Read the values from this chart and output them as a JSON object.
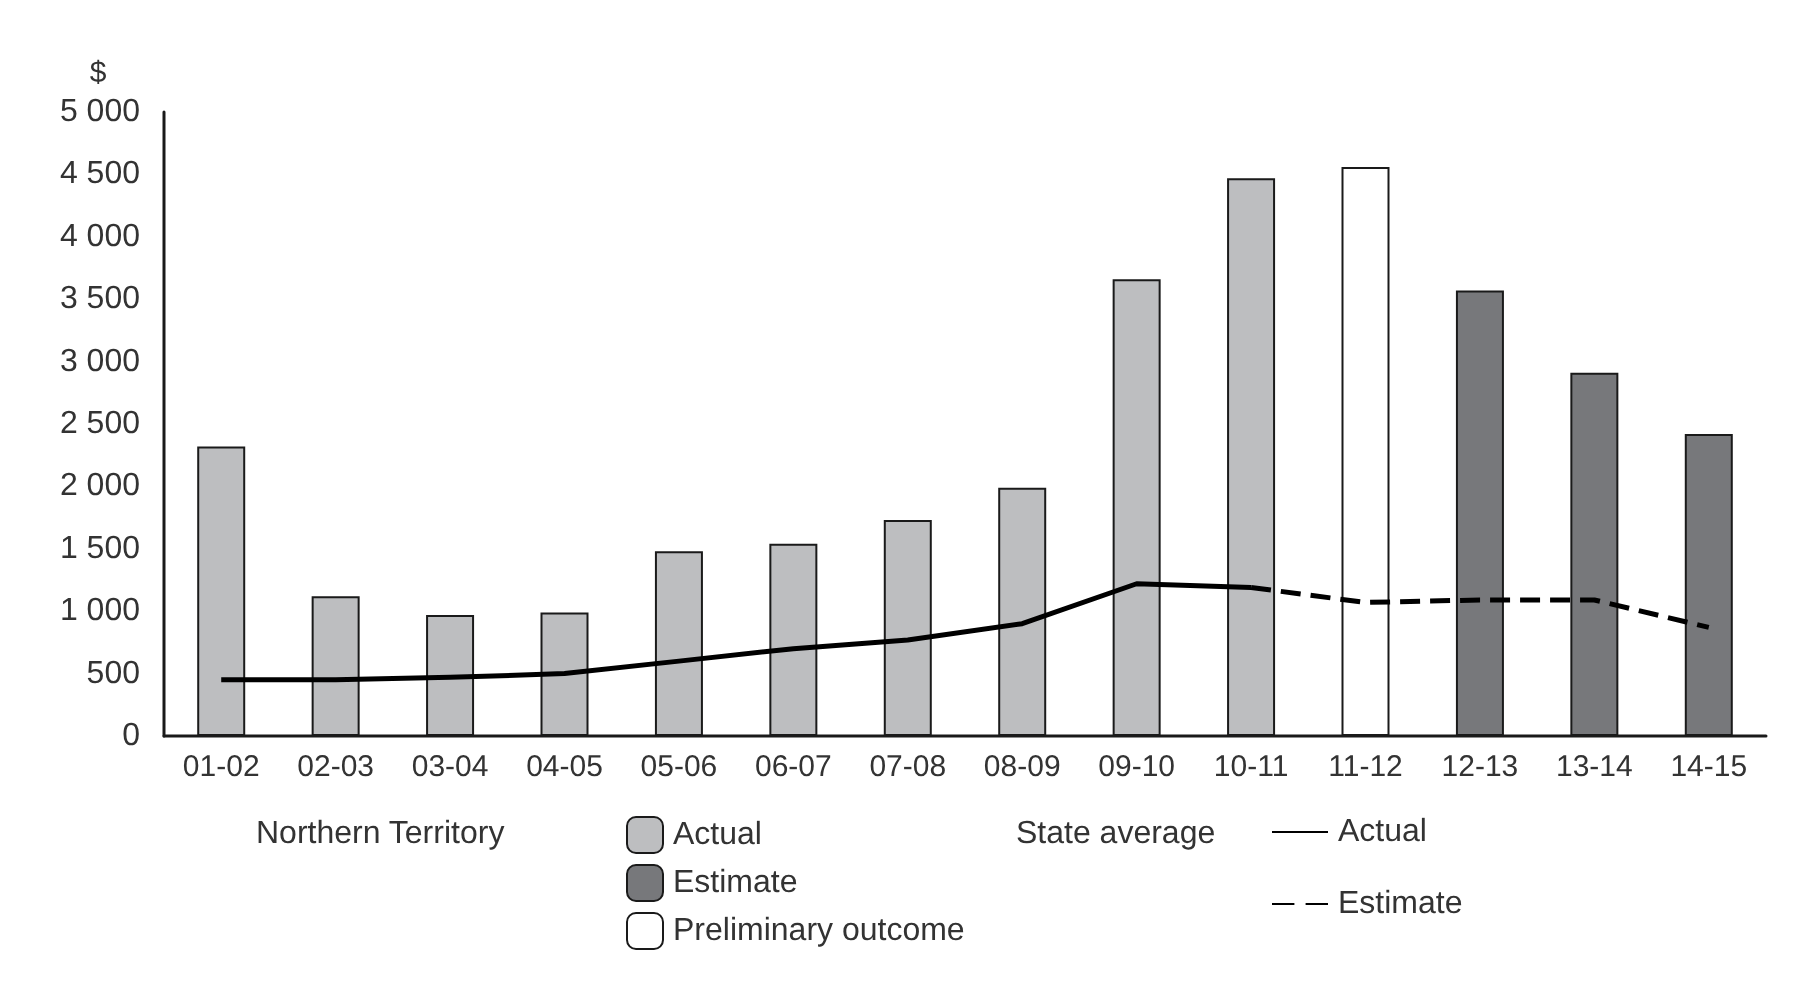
{
  "chart_data": {
    "type": "bar",
    "ylabel": "$",
    "categories": [
      "01-02",
      "02-03",
      "03-04",
      "04-05",
      "05-06",
      "06-07",
      "07-08",
      "08-09",
      "09-10",
      "10-11",
      "11-12",
      "12-13",
      "13-14",
      "14-15"
    ],
    "series": [
      {
        "name": "Actual",
        "color": "#bdbec0",
        "values": [
          2320,
          1120,
          970,
          990,
          1480,
          1540,
          1730,
          1990,
          3660,
          4470,
          null,
          null,
          null,
          null
        ]
      },
      {
        "name": "Estimate",
        "color": "#77787b",
        "values": [
          null,
          null,
          null,
          null,
          null,
          null,
          null,
          null,
          null,
          null,
          null,
          3570,
          2910,
          2420
        ]
      },
      {
        "name": "Preliminary outcome",
        "color": "#ffffff",
        "values": [
          null,
          null,
          null,
          null,
          null,
          null,
          null,
          null,
          null,
          null,
          4560,
          null,
          null,
          null
        ]
      },
      {
        "name": "Actual",
        "type": "line",
        "color": "#000000",
        "line_style": "solid",
        "values": [
          450,
          450,
          470,
          500,
          600,
          700,
          770,
          900,
          1220,
          1190,
          null,
          null,
          null,
          null
        ]
      },
      {
        "name": "Estimate",
        "type": "line",
        "color": "#000000",
        "line_style": "dashed",
        "values": [
          null,
          null,
          null,
          null,
          null,
          null,
          null,
          null,
          null,
          1190,
          1070,
          1090,
          1090,
          870
        ]
      }
    ],
    "annotations": [
      "Northern Territory",
      "State average"
    ],
    "ylim": [
      0,
      5000
    ],
    "yticks": [
      0,
      500,
      {
        "value": 1000,
        "label": "1 000"
      },
      {
        "value": 1500,
        "label": "1 500"
      },
      {
        "value": 2000,
        "label": "2 000"
      },
      {
        "value": 2500,
        "label": "2 500"
      },
      {
        "value": 3000,
        "label": "3 000"
      },
      {
        "value": 3500,
        "label": "3 500"
      },
      {
        "value": 4000,
        "label": "4 000"
      },
      {
        "value": 4500,
        "label": "4 500"
      },
      {
        "value": 5000,
        "label": "5 000"
      }
    ],
    "grid": false,
    "legend": "bottom",
    "marker": "none"
  }
}
